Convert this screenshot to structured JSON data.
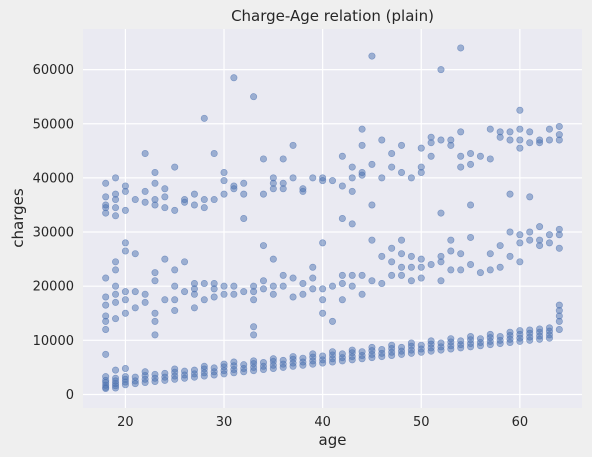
{
  "chart_data": {
    "type": "scatter",
    "title": "Charge-Age relation (plain)",
    "xlabel": "age",
    "ylabel": "charges",
    "xlim": [
      15.7,
      66.3
    ],
    "ylim": [
      -2500,
      67500
    ],
    "xticks": [
      20,
      30,
      40,
      50,
      60
    ],
    "yticks": [
      0,
      10000,
      20000,
      30000,
      40000,
      50000,
      60000
    ],
    "grid": true,
    "legend": "none",
    "colors": {
      "point": "#4c72b0",
      "plot_bg": "#eaeaf2",
      "grid": "#ffffff",
      "figure_bg": "#efefef"
    },
    "points": [
      [
        18,
        1100
      ],
      [
        18,
        1700
      ],
      [
        18,
        2200
      ],
      [
        18,
        2600
      ],
      [
        18,
        1300
      ],
      [
        18,
        3300
      ],
      [
        18,
        7400
      ],
      [
        18,
        12000
      ],
      [
        18,
        13500
      ],
      [
        18,
        14500
      ],
      [
        18,
        16500
      ],
      [
        18,
        18000
      ],
      [
        18,
        21500
      ],
      [
        18,
        33500
      ],
      [
        18,
        34500
      ],
      [
        18,
        35000
      ],
      [
        18,
        36500
      ],
      [
        18,
        39000
      ],
      [
        19,
        1200
      ],
      [
        19,
        1600
      ],
      [
        19,
        2000
      ],
      [
        19,
        2500
      ],
      [
        19,
        3000
      ],
      [
        19,
        4500
      ],
      [
        19,
        14000
      ],
      [
        19,
        17000
      ],
      [
        19,
        18500
      ],
      [
        19,
        20000
      ],
      [
        19,
        23000
      ],
      [
        19,
        24500
      ],
      [
        19,
        33000
      ],
      [
        19,
        34500
      ],
      [
        19,
        36000
      ],
      [
        19,
        37000
      ],
      [
        19,
        40000
      ],
      [
        20,
        1800
      ],
      [
        20,
        2300
      ],
      [
        20,
        2800
      ],
      [
        20,
        3300
      ],
      [
        20,
        4800
      ],
      [
        20,
        15000
      ],
      [
        20,
        17500
      ],
      [
        20,
        19000
      ],
      [
        20,
        26500
      ],
      [
        20,
        28000
      ],
      [
        20,
        34000
      ],
      [
        20,
        37500
      ],
      [
        20,
        38500
      ],
      [
        21,
        2000
      ],
      [
        21,
        2500
      ],
      [
        21,
        3200
      ],
      [
        21,
        16000
      ],
      [
        21,
        19000
      ],
      [
        21,
        26000
      ],
      [
        21,
        36000
      ],
      [
        22,
        2200
      ],
      [
        22,
        2800
      ],
      [
        22,
        3500
      ],
      [
        22,
        4200
      ],
      [
        22,
        17000
      ],
      [
        22,
        18500
      ],
      [
        22,
        35500
      ],
      [
        22,
        37500
      ],
      [
        22,
        44500
      ],
      [
        23,
        2400
      ],
      [
        23,
        3000
      ],
      [
        23,
        3700
      ],
      [
        23,
        11000
      ],
      [
        23,
        13500
      ],
      [
        23,
        15000
      ],
      [
        23,
        21000
      ],
      [
        23,
        22500
      ],
      [
        23,
        35000
      ],
      [
        23,
        36000
      ],
      [
        23,
        39000
      ],
      [
        23,
        41000
      ],
      [
        24,
        2600
      ],
      [
        24,
        3200
      ],
      [
        24,
        3900
      ],
      [
        24,
        17500
      ],
      [
        24,
        25000
      ],
      [
        24,
        34500
      ],
      [
        24,
        36500
      ],
      [
        24,
        38000
      ],
      [
        25,
        2800
      ],
      [
        25,
        3400
      ],
      [
        25,
        4100
      ],
      [
        25,
        4700
      ],
      [
        25,
        15500
      ],
      [
        25,
        17500
      ],
      [
        25,
        20000
      ],
      [
        25,
        23000
      ],
      [
        25,
        34000
      ],
      [
        25,
        42000
      ],
      [
        26,
        3000
      ],
      [
        26,
        3600
      ],
      [
        26,
        4300
      ],
      [
        26,
        19000
      ],
      [
        26,
        24500
      ],
      [
        26,
        35500
      ],
      [
        26,
        36000
      ],
      [
        27,
        3200
      ],
      [
        27,
        3800
      ],
      [
        27,
        4500
      ],
      [
        27,
        16000
      ],
      [
        27,
        18500
      ],
      [
        27,
        19500
      ],
      [
        27,
        20500
      ],
      [
        27,
        35000
      ],
      [
        27,
        37000
      ],
      [
        28,
        3400
      ],
      [
        28,
        4000
      ],
      [
        28,
        4700
      ],
      [
        28,
        5200
      ],
      [
        28,
        17500
      ],
      [
        28,
        20500
      ],
      [
        28,
        34500
      ],
      [
        28,
        36000
      ],
      [
        28,
        51000
      ],
      [
        29,
        3600
      ],
      [
        29,
        4200
      ],
      [
        29,
        4900
      ],
      [
        29,
        18000
      ],
      [
        29,
        19500
      ],
      [
        29,
        20500
      ],
      [
        29,
        36000
      ],
      [
        29,
        44500
      ],
      [
        30,
        3800
      ],
      [
        30,
        4400
      ],
      [
        30,
        5100
      ],
      [
        30,
        5600
      ],
      [
        30,
        18500
      ],
      [
        30,
        20000
      ],
      [
        30,
        37000
      ],
      [
        30,
        39500
      ],
      [
        30,
        41000
      ],
      [
        31,
        4000
      ],
      [
        31,
        4600
      ],
      [
        31,
        5300
      ],
      [
        31,
        6000
      ],
      [
        31,
        18500
      ],
      [
        31,
        20000
      ],
      [
        31,
        38000
      ],
      [
        31,
        38500
      ],
      [
        31,
        58500
      ],
      [
        32,
        4200
      ],
      [
        32,
        4800
      ],
      [
        32,
        5500
      ],
      [
        32,
        19000
      ],
      [
        32,
        32500
      ],
      [
        32,
        37000
      ],
      [
        32,
        39000
      ],
      [
        33,
        4400
      ],
      [
        33,
        5000
      ],
      [
        33,
        5700
      ],
      [
        33,
        6200
      ],
      [
        33,
        11000
      ],
      [
        33,
        12500
      ],
      [
        33,
        17500
      ],
      [
        33,
        19000
      ],
      [
        33,
        20000
      ],
      [
        33,
        55000
      ],
      [
        34,
        4600
      ],
      [
        34,
        5200
      ],
      [
        34,
        5900
      ],
      [
        34,
        19500
      ],
      [
        34,
        21000
      ],
      [
        34,
        27500
      ],
      [
        34,
        37000
      ],
      [
        34,
        43500
      ],
      [
        35,
        4800
      ],
      [
        35,
        5400
      ],
      [
        35,
        6100
      ],
      [
        35,
        6600
      ],
      [
        35,
        18500
      ],
      [
        35,
        20000
      ],
      [
        35,
        25000
      ],
      [
        35,
        38000
      ],
      [
        35,
        39000
      ],
      [
        35,
        40000
      ],
      [
        36,
        5000
      ],
      [
        36,
        5600
      ],
      [
        36,
        6300
      ],
      [
        36,
        20000
      ],
      [
        36,
        22000
      ],
      [
        36,
        38000
      ],
      [
        36,
        39000
      ],
      [
        36,
        43500
      ],
      [
        37,
        5200
      ],
      [
        37,
        5800
      ],
      [
        37,
        6500
      ],
      [
        37,
        7000
      ],
      [
        37,
        18000
      ],
      [
        37,
        21500
      ],
      [
        37,
        40000
      ],
      [
        37,
        46000
      ],
      [
        38,
        5400
      ],
      [
        38,
        6000
      ],
      [
        38,
        6700
      ],
      [
        38,
        18500
      ],
      [
        38,
        20500
      ],
      [
        38,
        37500
      ],
      [
        38,
        38000
      ],
      [
        39,
        5600
      ],
      [
        39,
        6200
      ],
      [
        39,
        6900
      ],
      [
        39,
        7500
      ],
      [
        39,
        19500
      ],
      [
        39,
        21500
      ],
      [
        39,
        23500
      ],
      [
        39,
        40000
      ],
      [
        40,
        5800
      ],
      [
        40,
        6400
      ],
      [
        40,
        7100
      ],
      [
        40,
        15000
      ],
      [
        40,
        17500
      ],
      [
        40,
        19500
      ],
      [
        40,
        28000
      ],
      [
        40,
        39500
      ],
      [
        40,
        40000
      ],
      [
        41,
        6000
      ],
      [
        41,
        6600
      ],
      [
        41,
        7300
      ],
      [
        41,
        7900
      ],
      [
        41,
        13500
      ],
      [
        41,
        20000
      ],
      [
        41,
        39500
      ],
      [
        42,
        6200
      ],
      [
        42,
        6800
      ],
      [
        42,
        7500
      ],
      [
        42,
        17500
      ],
      [
        42,
        20500
      ],
      [
        42,
        22000
      ],
      [
        42,
        32500
      ],
      [
        42,
        38500
      ],
      [
        42,
        44000
      ],
      [
        43,
        6400
      ],
      [
        43,
        7000
      ],
      [
        43,
        7700
      ],
      [
        43,
        8200
      ],
      [
        43,
        20000
      ],
      [
        43,
        22000
      ],
      [
        43,
        31500
      ],
      [
        43,
        37500
      ],
      [
        43,
        40000
      ],
      [
        43,
        42000
      ],
      [
        44,
        6600
      ],
      [
        44,
        7200
      ],
      [
        44,
        7900
      ],
      [
        44,
        18500
      ],
      [
        44,
        22000
      ],
      [
        44,
        40500
      ],
      [
        44,
        41000
      ],
      [
        44,
        46000
      ],
      [
        44,
        49000
      ],
      [
        45,
        6800
      ],
      [
        45,
        7400
      ],
      [
        45,
        8100
      ],
      [
        45,
        8700
      ],
      [
        45,
        21000
      ],
      [
        45,
        28500
      ],
      [
        45,
        35000
      ],
      [
        45,
        42500
      ],
      [
        45,
        62500
      ],
      [
        46,
        7000
      ],
      [
        46,
        7600
      ],
      [
        46,
        8300
      ],
      [
        46,
        20500
      ],
      [
        46,
        25500
      ],
      [
        46,
        40000
      ],
      [
        46,
        47000
      ],
      [
        47,
        7200
      ],
      [
        47,
        7800
      ],
      [
        47,
        8500
      ],
      [
        47,
        9100
      ],
      [
        47,
        22000
      ],
      [
        47,
        24500
      ],
      [
        47,
        27000
      ],
      [
        47,
        42000
      ],
      [
        47,
        44500
      ],
      [
        48,
        7400
      ],
      [
        48,
        8000
      ],
      [
        48,
        8700
      ],
      [
        48,
        22000
      ],
      [
        48,
        23500
      ],
      [
        48,
        26000
      ],
      [
        48,
        28500
      ],
      [
        48,
        41000
      ],
      [
        48,
        46000
      ],
      [
        49,
        7600
      ],
      [
        49,
        8200
      ],
      [
        49,
        8900
      ],
      [
        49,
        9500
      ],
      [
        49,
        21000
      ],
      [
        49,
        23500
      ],
      [
        49,
        25500
      ],
      [
        49,
        40000
      ],
      [
        50,
        7800
      ],
      [
        50,
        8400
      ],
      [
        50,
        9100
      ],
      [
        50,
        21500
      ],
      [
        50,
        23500
      ],
      [
        50,
        25000
      ],
      [
        50,
        41000
      ],
      [
        50,
        42000
      ],
      [
        50,
        45500
      ],
      [
        51,
        8000
      ],
      [
        51,
        8600
      ],
      [
        51,
        9300
      ],
      [
        51,
        9900
      ],
      [
        51,
        24000
      ],
      [
        51,
        44000
      ],
      [
        51,
        46500
      ],
      [
        51,
        47500
      ],
      [
        52,
        8200
      ],
      [
        52,
        8800
      ],
      [
        52,
        9500
      ],
      [
        52,
        21000
      ],
      [
        52,
        24500
      ],
      [
        52,
        25500
      ],
      [
        52,
        33500
      ],
      [
        52,
        47000
      ],
      [
        52,
        60000
      ],
      [
        53,
        8400
      ],
      [
        53,
        9000
      ],
      [
        53,
        9700
      ],
      [
        53,
        10300
      ],
      [
        53,
        23000
      ],
      [
        53,
        26500
      ],
      [
        53,
        28500
      ],
      [
        53,
        46000
      ],
      [
        53,
        47000
      ],
      [
        54,
        8600
      ],
      [
        54,
        9200
      ],
      [
        54,
        9900
      ],
      [
        54,
        23000
      ],
      [
        54,
        26000
      ],
      [
        54,
        42000
      ],
      [
        54,
        44000
      ],
      [
        54,
        48500
      ],
      [
        54,
        64000
      ],
      [
        55,
        8800
      ],
      [
        55,
        9400
      ],
      [
        55,
        10100
      ],
      [
        55,
        10700
      ],
      [
        55,
        24000
      ],
      [
        55,
        29000
      ],
      [
        55,
        35000
      ],
      [
        55,
        42500
      ],
      [
        55,
        44500
      ],
      [
        56,
        9000
      ],
      [
        56,
        9600
      ],
      [
        56,
        10300
      ],
      [
        56,
        22500
      ],
      [
        56,
        44000
      ],
      [
        57,
        9200
      ],
      [
        57,
        9800
      ],
      [
        57,
        10500
      ],
      [
        57,
        11100
      ],
      [
        57,
        23000
      ],
      [
        57,
        26000
      ],
      [
        57,
        43500
      ],
      [
        57,
        49000
      ],
      [
        58,
        9400
      ],
      [
        58,
        10000
      ],
      [
        58,
        10700
      ],
      [
        58,
        23500
      ],
      [
        58,
        27500
      ],
      [
        58,
        47500
      ],
      [
        58,
        48500
      ],
      [
        59,
        9600
      ],
      [
        59,
        10200
      ],
      [
        59,
        10900
      ],
      [
        59,
        11500
      ],
      [
        59,
        25500
      ],
      [
        59,
        30000
      ],
      [
        59,
        37000
      ],
      [
        59,
        47000
      ],
      [
        59,
        48500
      ],
      [
        60,
        9800
      ],
      [
        60,
        10400
      ],
      [
        60,
        11100
      ],
      [
        60,
        11800
      ],
      [
        60,
        24500
      ],
      [
        60,
        28000
      ],
      [
        60,
        29500
      ],
      [
        60,
        45500
      ],
      [
        60,
        47000
      ],
      [
        60,
        49000
      ],
      [
        60,
        52500
      ],
      [
        61,
        10000
      ],
      [
        61,
        10600
      ],
      [
        61,
        11300
      ],
      [
        61,
        11900
      ],
      [
        61,
        28500
      ],
      [
        61,
        30000
      ],
      [
        61,
        36500
      ],
      [
        61,
        46500
      ],
      [
        61,
        48500
      ],
      [
        62,
        10200
      ],
      [
        62,
        10800
      ],
      [
        62,
        11500
      ],
      [
        62,
        12100
      ],
      [
        62,
        27500
      ],
      [
        62,
        28500
      ],
      [
        62,
        31000
      ],
      [
        62,
        46500
      ],
      [
        62,
        47000
      ],
      [
        63,
        10400
      ],
      [
        63,
        11000
      ],
      [
        63,
        11700
      ],
      [
        63,
        12300
      ],
      [
        63,
        28000
      ],
      [
        63,
        29500
      ],
      [
        63,
        47000
      ],
      [
        63,
        49000
      ],
      [
        64,
        12000
      ],
      [
        64,
        13500
      ],
      [
        64,
        14500
      ],
      [
        64,
        15500
      ],
      [
        64,
        16500
      ],
      [
        64,
        27000
      ],
      [
        64,
        29500
      ],
      [
        64,
        30500
      ],
      [
        64,
        47000
      ],
      [
        64,
        48000
      ],
      [
        64,
        49500
      ]
    ]
  }
}
